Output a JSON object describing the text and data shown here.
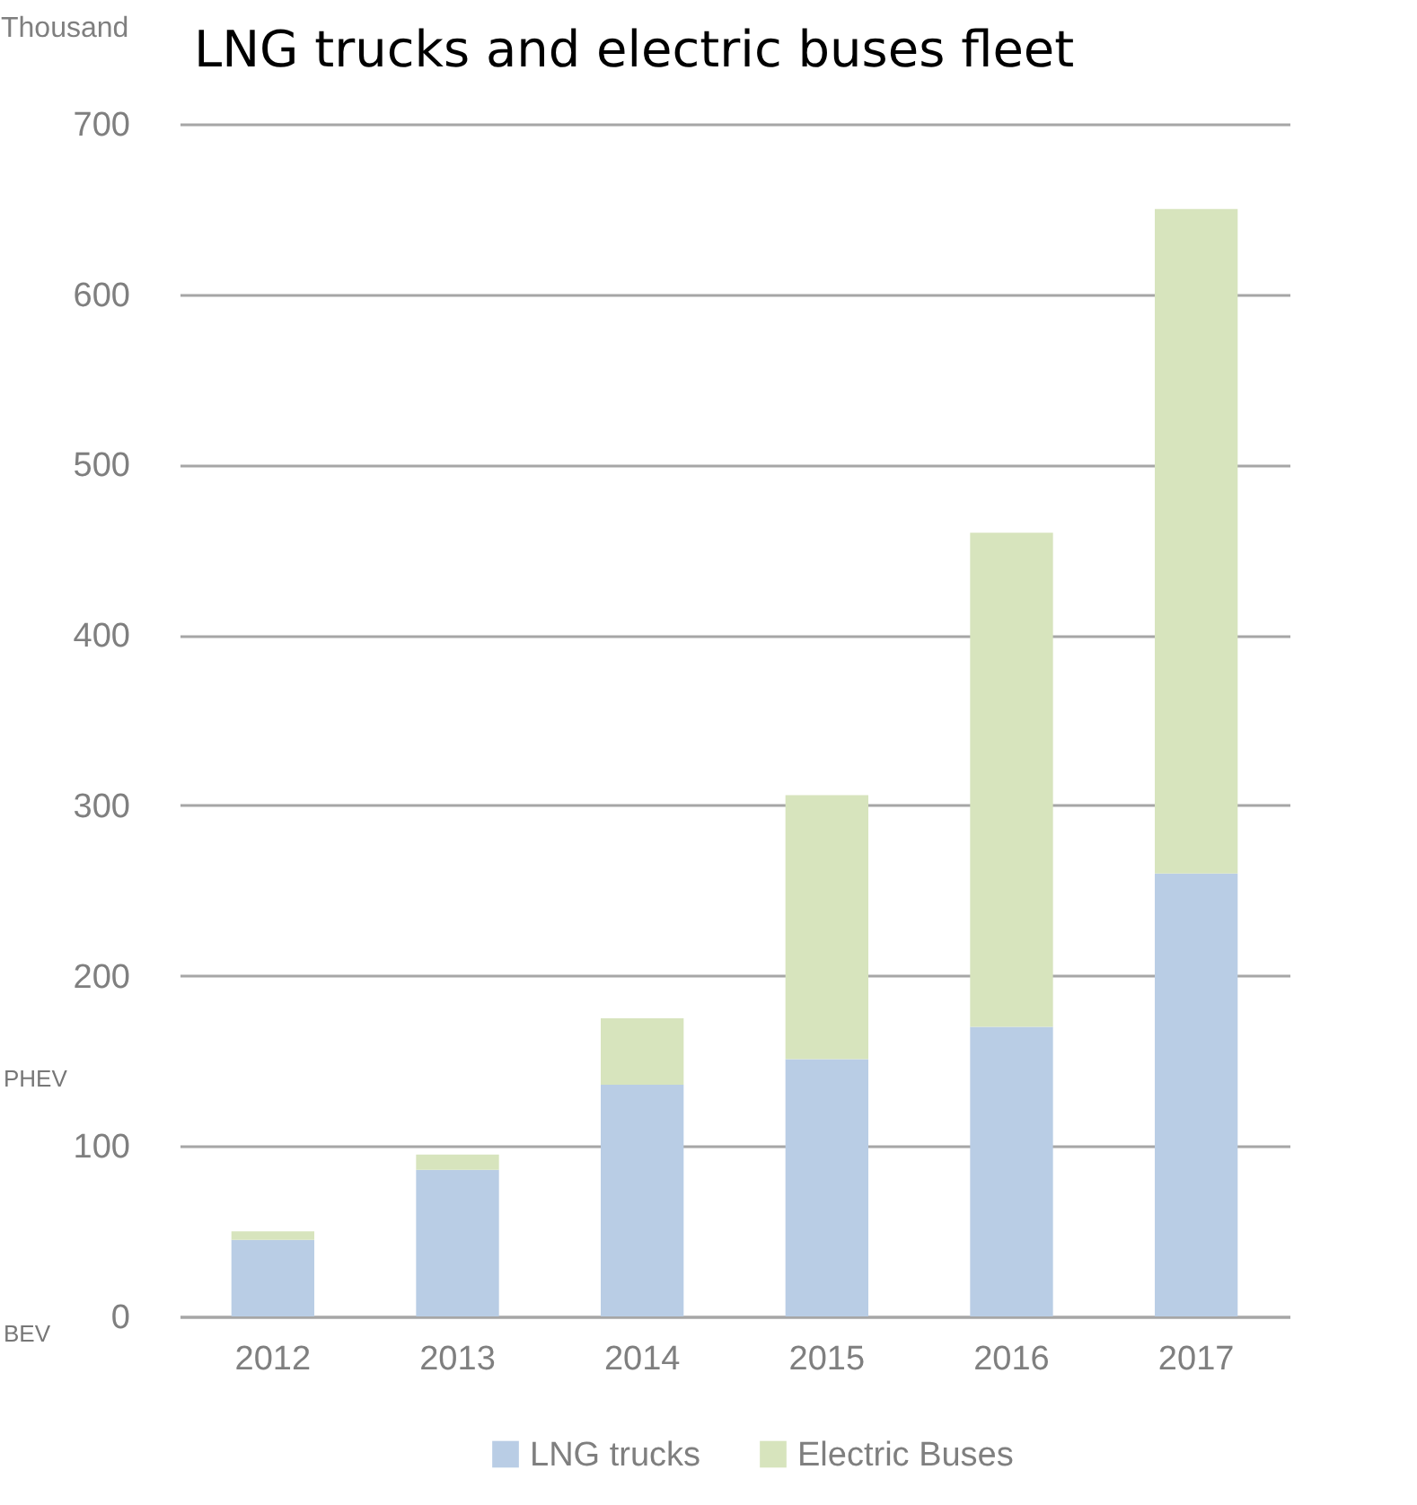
{
  "chart_data": {
    "type": "bar",
    "title": "LNG trucks and electric buses fleet",
    "ylabel": "Thousand",
    "categories": [
      "2012",
      "2013",
      "2014",
      "2015",
      "2016",
      "2017"
    ],
    "series": [
      {
        "name": "LNG trucks",
        "color": "#b9cde5",
        "values": [
          45,
          86,
          136,
          151,
          170,
          260
        ]
      },
      {
        "name": "Electric Buses",
        "color": "#d7e4bd",
        "values": [
          5,
          9,
          39,
          155,
          290,
          390
        ]
      }
    ],
    "stacked": true,
    "ylim": [
      0,
      700
    ],
    "yticks": [
      0,
      100,
      200,
      300,
      400,
      500,
      600,
      700
    ],
    "grid": "y",
    "legend": "bottom",
    "annotations": [
      "PHEV",
      "BEV"
    ]
  }
}
